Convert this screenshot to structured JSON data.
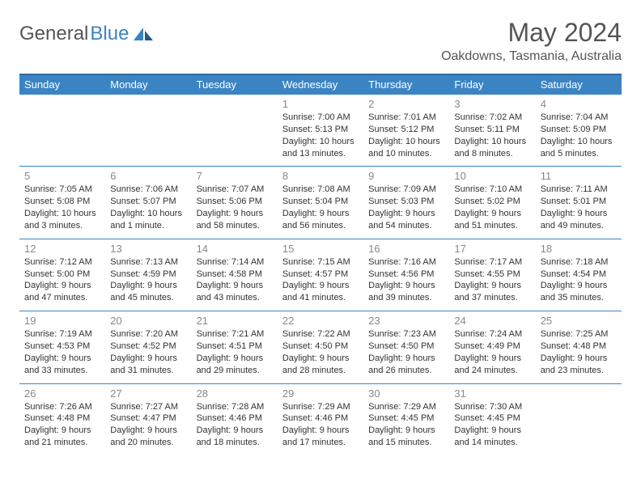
{
  "logo": {
    "text1": "General",
    "text2": "Blue"
  },
  "title": "May 2024",
  "location": "Oakdowns, Tasmania, Australia",
  "colors": {
    "header_bg": "#3b84c4",
    "header_border_top": "#2f6ba0",
    "cell_border": "#3b84c4",
    "daynum": "#888888",
    "text": "#333333",
    "title": "#555555"
  },
  "weekdays": [
    "Sunday",
    "Monday",
    "Tuesday",
    "Wednesday",
    "Thursday",
    "Friday",
    "Saturday"
  ],
  "weeks": [
    [
      null,
      null,
      null,
      {
        "n": "1",
        "sr": "Sunrise: 7:00 AM",
        "ss": "Sunset: 5:13 PM",
        "d1": "Daylight: 10 hours",
        "d2": "and 13 minutes."
      },
      {
        "n": "2",
        "sr": "Sunrise: 7:01 AM",
        "ss": "Sunset: 5:12 PM",
        "d1": "Daylight: 10 hours",
        "d2": "and 10 minutes."
      },
      {
        "n": "3",
        "sr": "Sunrise: 7:02 AM",
        "ss": "Sunset: 5:11 PM",
        "d1": "Daylight: 10 hours",
        "d2": "and 8 minutes."
      },
      {
        "n": "4",
        "sr": "Sunrise: 7:04 AM",
        "ss": "Sunset: 5:09 PM",
        "d1": "Daylight: 10 hours",
        "d2": "and 5 minutes."
      }
    ],
    [
      {
        "n": "5",
        "sr": "Sunrise: 7:05 AM",
        "ss": "Sunset: 5:08 PM",
        "d1": "Daylight: 10 hours",
        "d2": "and 3 minutes."
      },
      {
        "n": "6",
        "sr": "Sunrise: 7:06 AM",
        "ss": "Sunset: 5:07 PM",
        "d1": "Daylight: 10 hours",
        "d2": "and 1 minute."
      },
      {
        "n": "7",
        "sr": "Sunrise: 7:07 AM",
        "ss": "Sunset: 5:06 PM",
        "d1": "Daylight: 9 hours",
        "d2": "and 58 minutes."
      },
      {
        "n": "8",
        "sr": "Sunrise: 7:08 AM",
        "ss": "Sunset: 5:04 PM",
        "d1": "Daylight: 9 hours",
        "d2": "and 56 minutes."
      },
      {
        "n": "9",
        "sr": "Sunrise: 7:09 AM",
        "ss": "Sunset: 5:03 PM",
        "d1": "Daylight: 9 hours",
        "d2": "and 54 minutes."
      },
      {
        "n": "10",
        "sr": "Sunrise: 7:10 AM",
        "ss": "Sunset: 5:02 PM",
        "d1": "Daylight: 9 hours",
        "d2": "and 51 minutes."
      },
      {
        "n": "11",
        "sr": "Sunrise: 7:11 AM",
        "ss": "Sunset: 5:01 PM",
        "d1": "Daylight: 9 hours",
        "d2": "and 49 minutes."
      }
    ],
    [
      {
        "n": "12",
        "sr": "Sunrise: 7:12 AM",
        "ss": "Sunset: 5:00 PM",
        "d1": "Daylight: 9 hours",
        "d2": "and 47 minutes."
      },
      {
        "n": "13",
        "sr": "Sunrise: 7:13 AM",
        "ss": "Sunset: 4:59 PM",
        "d1": "Daylight: 9 hours",
        "d2": "and 45 minutes."
      },
      {
        "n": "14",
        "sr": "Sunrise: 7:14 AM",
        "ss": "Sunset: 4:58 PM",
        "d1": "Daylight: 9 hours",
        "d2": "and 43 minutes."
      },
      {
        "n": "15",
        "sr": "Sunrise: 7:15 AM",
        "ss": "Sunset: 4:57 PM",
        "d1": "Daylight: 9 hours",
        "d2": "and 41 minutes."
      },
      {
        "n": "16",
        "sr": "Sunrise: 7:16 AM",
        "ss": "Sunset: 4:56 PM",
        "d1": "Daylight: 9 hours",
        "d2": "and 39 minutes."
      },
      {
        "n": "17",
        "sr": "Sunrise: 7:17 AM",
        "ss": "Sunset: 4:55 PM",
        "d1": "Daylight: 9 hours",
        "d2": "and 37 minutes."
      },
      {
        "n": "18",
        "sr": "Sunrise: 7:18 AM",
        "ss": "Sunset: 4:54 PM",
        "d1": "Daylight: 9 hours",
        "d2": "and 35 minutes."
      }
    ],
    [
      {
        "n": "19",
        "sr": "Sunrise: 7:19 AM",
        "ss": "Sunset: 4:53 PM",
        "d1": "Daylight: 9 hours",
        "d2": "and 33 minutes."
      },
      {
        "n": "20",
        "sr": "Sunrise: 7:20 AM",
        "ss": "Sunset: 4:52 PM",
        "d1": "Daylight: 9 hours",
        "d2": "and 31 minutes."
      },
      {
        "n": "21",
        "sr": "Sunrise: 7:21 AM",
        "ss": "Sunset: 4:51 PM",
        "d1": "Daylight: 9 hours",
        "d2": "and 29 minutes."
      },
      {
        "n": "22",
        "sr": "Sunrise: 7:22 AM",
        "ss": "Sunset: 4:50 PM",
        "d1": "Daylight: 9 hours",
        "d2": "and 28 minutes."
      },
      {
        "n": "23",
        "sr": "Sunrise: 7:23 AM",
        "ss": "Sunset: 4:50 PM",
        "d1": "Daylight: 9 hours",
        "d2": "and 26 minutes."
      },
      {
        "n": "24",
        "sr": "Sunrise: 7:24 AM",
        "ss": "Sunset: 4:49 PM",
        "d1": "Daylight: 9 hours",
        "d2": "and 24 minutes."
      },
      {
        "n": "25",
        "sr": "Sunrise: 7:25 AM",
        "ss": "Sunset: 4:48 PM",
        "d1": "Daylight: 9 hours",
        "d2": "and 23 minutes."
      }
    ],
    [
      {
        "n": "26",
        "sr": "Sunrise: 7:26 AM",
        "ss": "Sunset: 4:48 PM",
        "d1": "Daylight: 9 hours",
        "d2": "and 21 minutes."
      },
      {
        "n": "27",
        "sr": "Sunrise: 7:27 AM",
        "ss": "Sunset: 4:47 PM",
        "d1": "Daylight: 9 hours",
        "d2": "and 20 minutes."
      },
      {
        "n": "28",
        "sr": "Sunrise: 7:28 AM",
        "ss": "Sunset: 4:46 PM",
        "d1": "Daylight: 9 hours",
        "d2": "and 18 minutes."
      },
      {
        "n": "29",
        "sr": "Sunrise: 7:29 AM",
        "ss": "Sunset: 4:46 PM",
        "d1": "Daylight: 9 hours",
        "d2": "and 17 minutes."
      },
      {
        "n": "30",
        "sr": "Sunrise: 7:29 AM",
        "ss": "Sunset: 4:45 PM",
        "d1": "Daylight: 9 hours",
        "d2": "and 15 minutes."
      },
      {
        "n": "31",
        "sr": "Sunrise: 7:30 AM",
        "ss": "Sunset: 4:45 PM",
        "d1": "Daylight: 9 hours",
        "d2": "and 14 minutes."
      },
      null
    ]
  ]
}
